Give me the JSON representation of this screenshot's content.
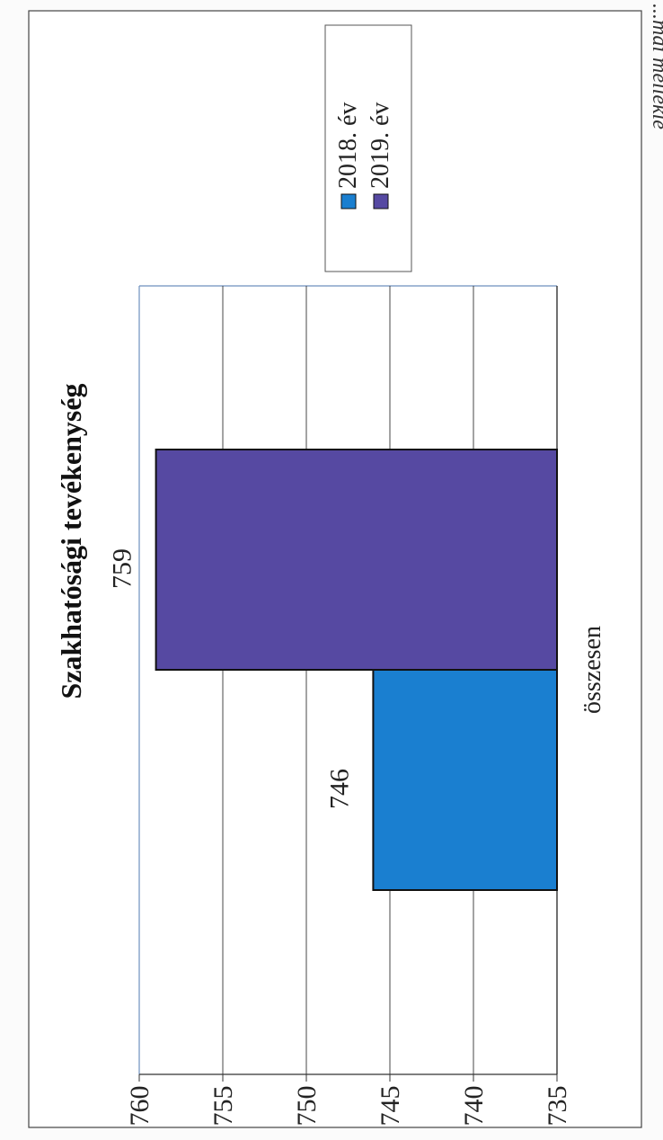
{
  "header_fragment": "...mai mellékle",
  "chart_data": {
    "type": "bar",
    "orientation": "rotated-90-ccw",
    "title": "Szakhatósági tevékenység",
    "categories": [
      "összesen"
    ],
    "series": [
      {
        "name": "2018. év",
        "values": [
          746
        ],
        "color": "#1a7fd0"
      },
      {
        "name": "2019. év",
        "values": [
          759
        ],
        "color": "#5649a2"
      }
    ],
    "data_labels": [
      "746",
      "759"
    ],
    "ylim": [
      735,
      760
    ],
    "yticks": [
      735,
      740,
      745,
      750,
      755,
      760
    ],
    "grid": true,
    "legend_position": "top-right",
    "colors": {
      "axis": "#6d8fbe",
      "grid": "#333333",
      "text": "#222222"
    }
  }
}
